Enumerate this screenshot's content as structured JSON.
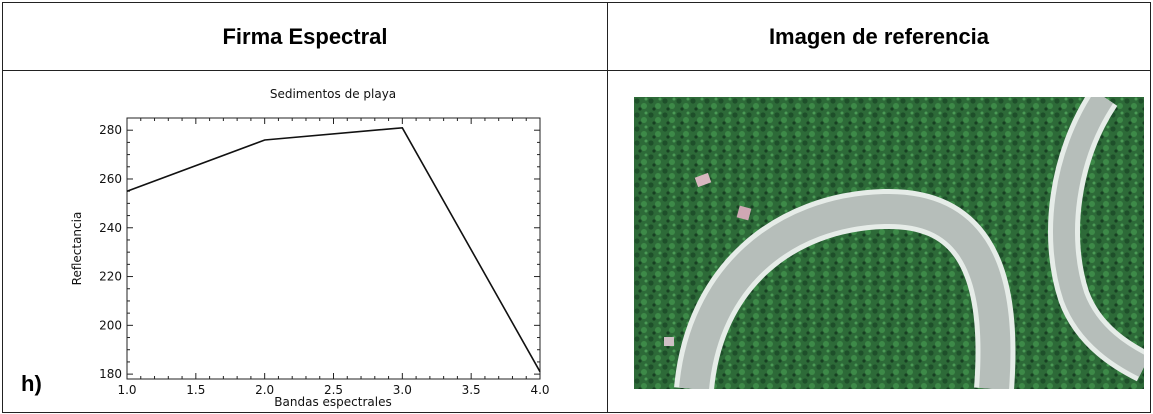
{
  "headers": {
    "left": "Firma Espectral",
    "right": "Imagen de referencia"
  },
  "panel_label": "h)",
  "chart_data": {
    "type": "line",
    "title": "Sedimentos de playa",
    "xlabel": "Bandas espectrales",
    "ylabel": "Reflectancia",
    "xlim": [
      1.0,
      4.0
    ],
    "ylim": [
      178,
      285
    ],
    "x_ticks": [
      "1.0",
      "1.5",
      "2.0",
      "2.5",
      "3.0",
      "3.5",
      "4.0"
    ],
    "y_ticks": [
      "180",
      "200",
      "220",
      "240",
      "260",
      "280"
    ],
    "grid": false,
    "series": [
      {
        "x": [
          1.0,
          2.0,
          3.0,
          4.0
        ],
        "values": [
          255,
          276,
          281,
          181
        ]
      }
    ]
  },
  "image": {
    "vegetation_color": "#2f6e3a",
    "river_color": "#b9c1bd",
    "bank_color": "#e8eeea"
  }
}
